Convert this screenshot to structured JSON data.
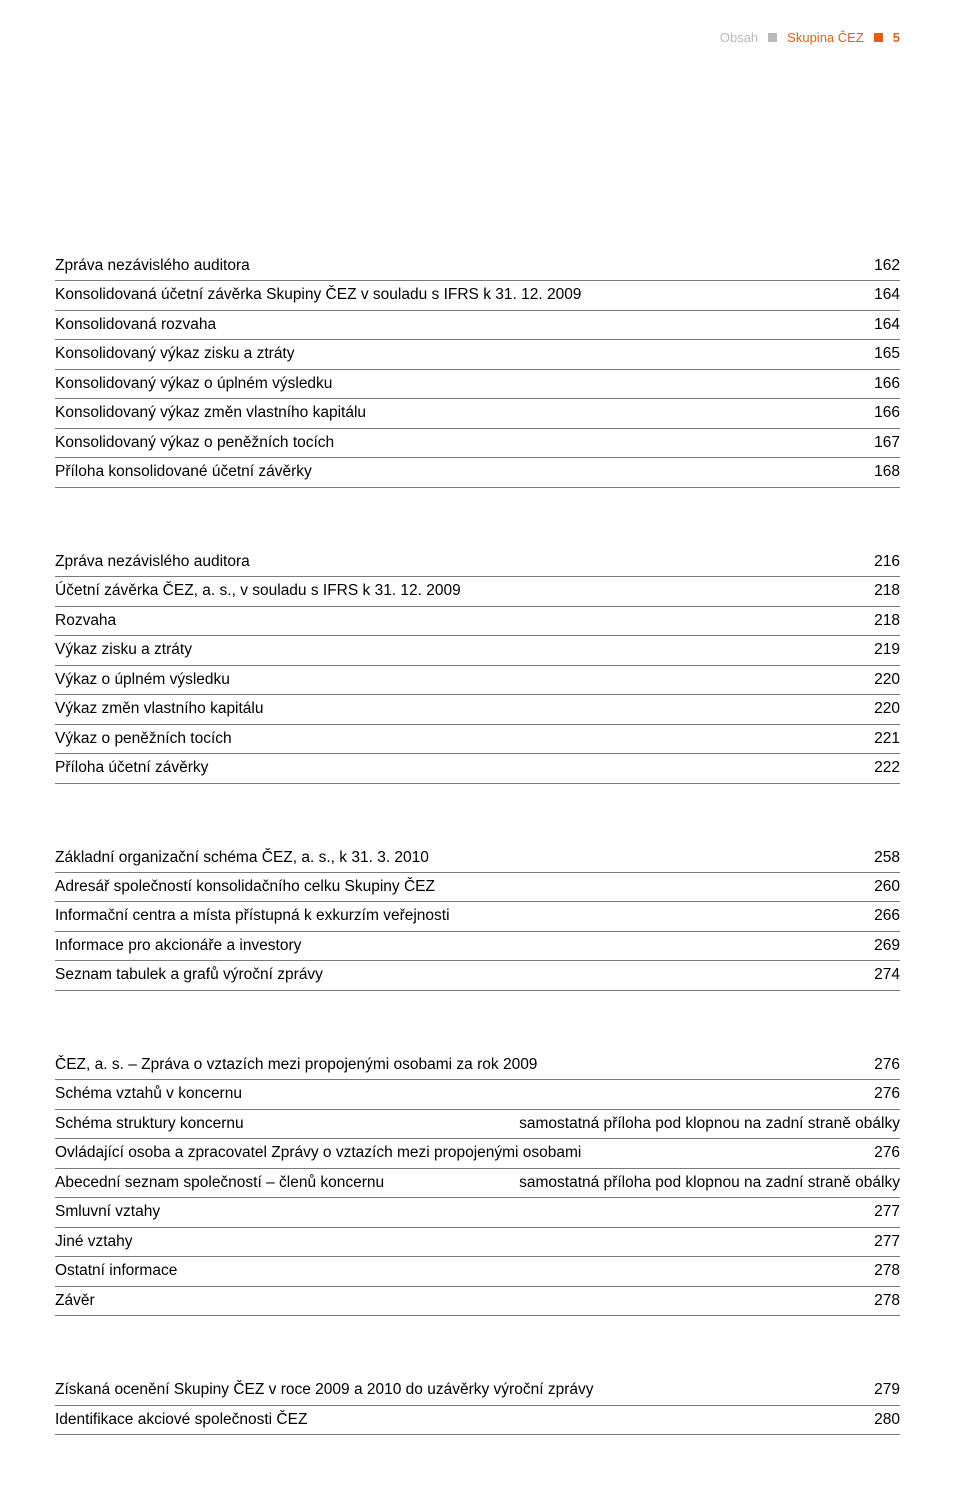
{
  "header": {
    "obsah": "Obsah",
    "skupina": "Skupina ČEZ",
    "pagenum": "5"
  },
  "sections": [
    {
      "rows": [
        {
          "label": "Zpráva nezávislého auditora",
          "page": "162"
        },
        {
          "label": "Konsolidovaná účetní závěrka Skupiny ČEZ v souladu s IFRS k 31. 12. 2009",
          "page": "164"
        },
        {
          "label": "Konsolidovaná rozvaha",
          "page": "164"
        },
        {
          "label": "Konsolidovaný výkaz zisku a ztráty",
          "page": "165"
        },
        {
          "label": "Konsolidovaný výkaz o úplném výsledku",
          "page": "166"
        },
        {
          "label": "Konsolidovaný výkaz změn vlastního kapitálu",
          "page": "166"
        },
        {
          "label": "Konsolidovaný výkaz o peněžních tocích",
          "page": "167"
        },
        {
          "label": "Příloha konsolidované účetní závěrky",
          "page": "168"
        }
      ]
    },
    {
      "rows": [
        {
          "label": "Zpráva nezávislého auditora",
          "page": "216"
        },
        {
          "label": "Účetní závěrka ČEZ, a. s., v souladu s IFRS k 31. 12. 2009",
          "page": "218"
        },
        {
          "label": "Rozvaha",
          "page": "218"
        },
        {
          "label": "Výkaz zisku a ztráty",
          "page": "219"
        },
        {
          "label": "Výkaz o úplném výsledku",
          "page": "220"
        },
        {
          "label": "Výkaz změn vlastního kapitálu",
          "page": "220"
        },
        {
          "label": "Výkaz o peněžních tocích",
          "page": "221"
        },
        {
          "label": "Příloha účetní závěrky",
          "page": "222"
        }
      ]
    },
    {
      "rows": [
        {
          "label": "Základní organizační schéma ČEZ, a. s., k 31. 3. 2010",
          "page": "258"
        },
        {
          "label": "Adresář společností konsolidačního celku Skupiny ČEZ",
          "page": "260"
        },
        {
          "label": "Informační centra a místa přístupná k exkurzím veřejnosti",
          "page": "266"
        },
        {
          "label": "Informace pro akcionáře a investory",
          "page": "269"
        },
        {
          "label": "Seznam tabulek a grafů výroční zprávy",
          "page": "274"
        }
      ]
    },
    {
      "rows": [
        {
          "label": "ČEZ, a. s. – Zpráva o vztazích mezi propojenými osobami za rok 2009",
          "page": "276"
        },
        {
          "label": "Schéma vztahů v koncernu",
          "page": "276"
        },
        {
          "label": "Schéma struktury koncernu",
          "page": "samostatná příloha pod klopnou na zadní straně obálky"
        },
        {
          "label": "Ovládající osoba a zpracovatel Zprávy o vztazích mezi propojenými osobami",
          "page": "276"
        },
        {
          "label": "Abecední seznam společností – členů koncernu",
          "page": "samostatná příloha pod klopnou na zadní straně obálky"
        },
        {
          "label": "Smluvní vztahy",
          "page": "277"
        },
        {
          "label": "Jiné vztahy",
          "page": "277"
        },
        {
          "label": "Ostatní informace",
          "page": "278"
        },
        {
          "label": "Závěr",
          "page": "278"
        }
      ]
    },
    {
      "rows": [
        {
          "label": "Získaná ocenění Skupiny ČEZ v roce 2009 a 2010 do uzávěrky výroční zprávy",
          "page": "279"
        },
        {
          "label": "Identifikace akciové společnosti ČEZ",
          "page": "280"
        }
      ]
    }
  ]
}
